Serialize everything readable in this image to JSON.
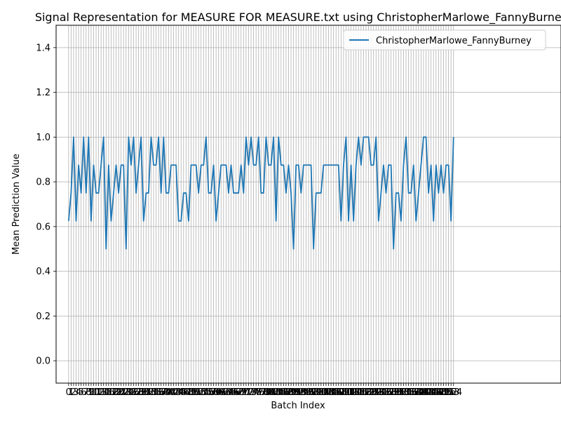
{
  "chart_data": {
    "type": "line",
    "title": "Signal Representation for MEASURE FOR MEASURE.txt using ChristopherMarlowe_FannyBurney",
    "xlabel": "Batch Index",
    "ylabel": "Mean Prediction Value",
    "xlim": [
      -5,
      197
    ],
    "ylim": [
      -0.1,
      1.5
    ],
    "yticks": [
      0.0,
      0.2,
      0.4,
      0.6,
      0.8,
      1.0,
      1.2,
      1.4
    ],
    "x_tick_step": 1,
    "grid": true,
    "legend_position": "top-right",
    "colors": {
      "series": "#1f77b4",
      "grid": "#b0b0b0",
      "axis": "#000000"
    },
    "series": [
      {
        "name": "ChristopherMarlowe_FannyBurney",
        "values": [
          0.625,
          0.75,
          1.0,
          0.625,
          0.875,
          0.75,
          1.0,
          0.75,
          1.0,
          0.625,
          0.875,
          0.75,
          0.75,
          0.875,
          1.0,
          0.5,
          0.875,
          0.625,
          0.75,
          0.875,
          0.75,
          0.875,
          0.875,
          0.5,
          1.0,
          0.875,
          1.0,
          0.75,
          0.875,
          1.0,
          0.625,
          0.75,
          0.75,
          1.0,
          0.875,
          0.875,
          1.0,
          0.75,
          1.0,
          0.75,
          0.75,
          0.875,
          0.875,
          0.875,
          0.625,
          0.625,
          0.75,
          0.75,
          0.625,
          0.875,
          0.875,
          0.875,
          0.75,
          0.875,
          0.875,
          1.0,
          0.75,
          0.75,
          0.875,
          0.625,
          0.75,
          0.875,
          0.875,
          0.875,
          0.75,
          0.875,
          0.75,
          0.75,
          0.75,
          0.875,
          0.75,
          1.0,
          0.875,
          1.0,
          0.875,
          0.875,
          1.0,
          0.75,
          0.75,
          1.0,
          0.875,
          0.875,
          1.0,
          0.625,
          1.0,
          0.875,
          0.875,
          0.75,
          0.875,
          0.75,
          0.5,
          0.875,
          0.875,
          0.75,
          0.875,
          0.875,
          0.875,
          0.875,
          0.5,
          0.75,
          0.75,
          0.75,
          0.875,
          0.875,
          0.875,
          0.875,
          0.875,
          0.875,
          0.875,
          0.625,
          0.875,
          1.0,
          0.625,
          0.875,
          0.625,
          0.875,
          1.0,
          0.875,
          1.0,
          1.0,
          1.0,
          0.875,
          0.875,
          1.0,
          0.625,
          0.75,
          0.875,
          0.75,
          0.875,
          0.875,
          0.5,
          0.75,
          0.75,
          0.625,
          0.875,
          1.0,
          0.75,
          0.75,
          0.875,
          0.625,
          0.75,
          0.875,
          1.0,
          1.0,
          0.75,
          0.875,
          0.625,
          0.875,
          0.75,
          0.875,
          0.75,
          0.875,
          0.875,
          0.625,
          1.0
        ]
      }
    ]
  }
}
